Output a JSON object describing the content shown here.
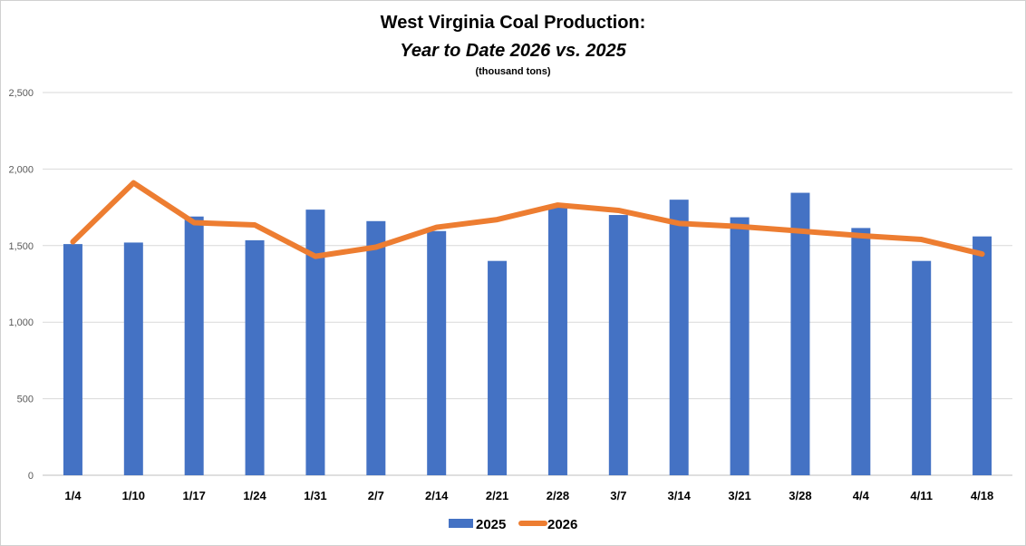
{
  "chart_data": {
    "type": "bar+line",
    "title": "West Virginia Coal Production:",
    "subtitle": "Year to Date 2026 vs. 2025",
    "units_note": "(thousand tons)",
    "categories": [
      "1/4",
      "1/10",
      "1/17",
      "1/24",
      "1/31",
      "2/7",
      "2/14",
      "2/21",
      "2/28",
      "3/7",
      "3/14",
      "3/21",
      "3/28",
      "4/4",
      "4/11",
      "4/18"
    ],
    "series": [
      {
        "name": "2025",
        "type": "bar",
        "color": "#4472c4",
        "values": [
          1510,
          1520,
          1690,
          1535,
          1735,
          1660,
          1595,
          1400,
          1760,
          1700,
          1800,
          1685,
          1845,
          1615,
          1400,
          1560
        ]
      },
      {
        "name": "2026",
        "type": "line",
        "color": "#ed7d31",
        "values": [
          1525,
          1910,
          1650,
          1635,
          1430,
          1490,
          1620,
          1670,
          1765,
          1730,
          1645,
          1625,
          1595,
          1565,
          1540,
          1445
        ]
      }
    ],
    "ylim": [
      0,
      2500
    ],
    "yticks": [
      0,
      500,
      1000,
      1500,
      2000,
      2500
    ],
    "ytick_labels": [
      "0",
      "500",
      "1,000",
      "1,500",
      "2,000",
      "2,500"
    ],
    "grid": true,
    "legend": "bottom-center"
  }
}
